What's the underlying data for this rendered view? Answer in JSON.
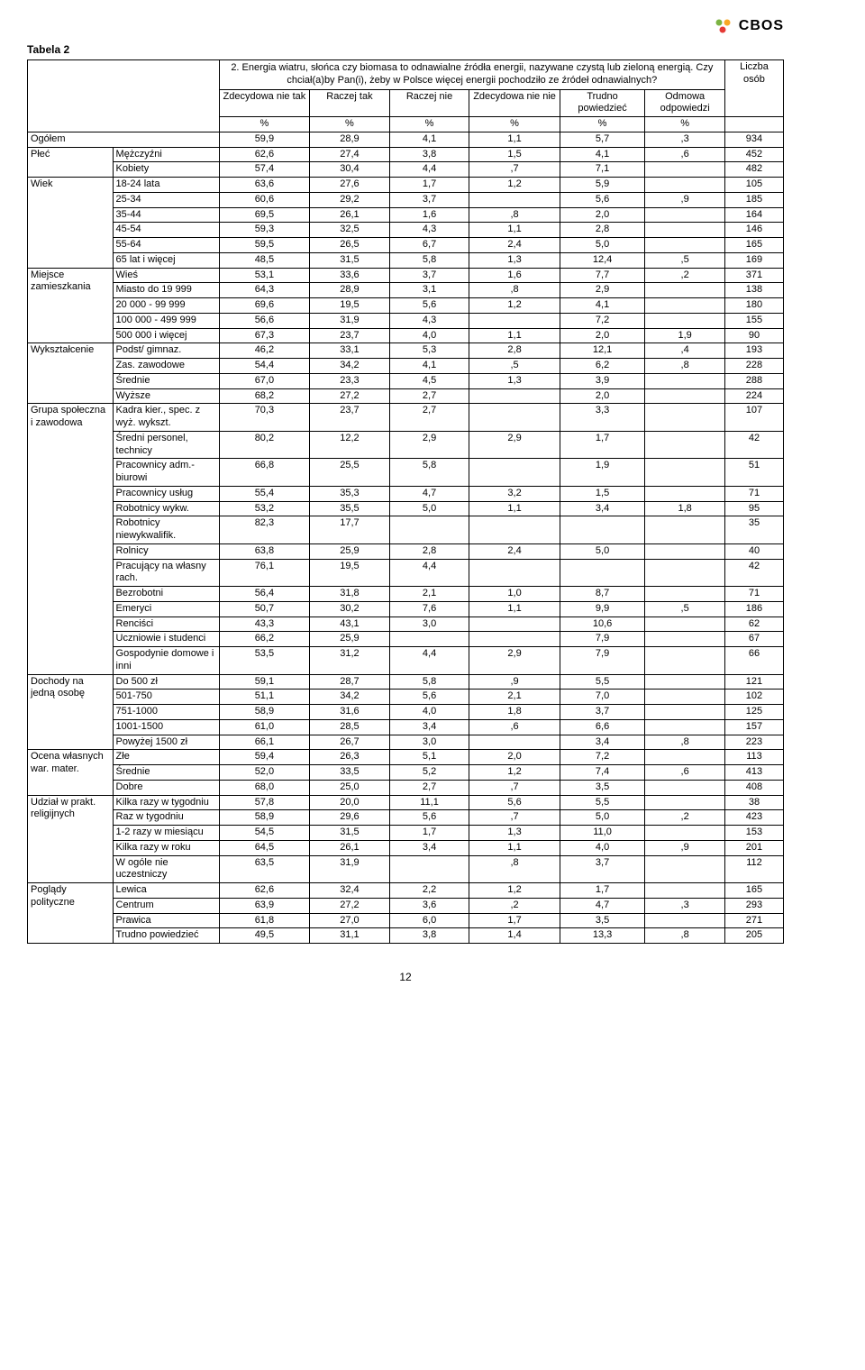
{
  "logo_text": "CBOS",
  "logo_colors": [
    "#7cb342",
    "#f9a825",
    "#e53935"
  ],
  "table_title": "Tabela 2",
  "question": "2. Energia wiatru, słońca czy biomasa to odnawialne źródła energii, nazywane czystą lub zieloną energią. Czy chciał(a)by Pan(i), żeby w Polsce więcej energii pochodziło ze źródeł odnawialnych?",
  "cols": {
    "c1": "Zdecydowa nie tak",
    "c2": "Raczej tak",
    "c3": "Raczej nie",
    "c4": "Zdecydowa nie nie",
    "c5": "Trudno powiedzieć",
    "c6": "Odmowa odpowiedzi",
    "count": "Liczba osób",
    "pct": "%"
  },
  "groups": [
    {
      "group": "Ogółem",
      "span": 2,
      "rows": [
        {
          "label": "",
          "v": [
            "59,9",
            "28,9",
            "4,1",
            "1,1",
            "5,7",
            ",3",
            "934"
          ]
        }
      ]
    },
    {
      "group": "Płeć",
      "rows": [
        {
          "label": "Mężczyźni",
          "v": [
            "62,6",
            "27,4",
            "3,8",
            "1,5",
            "4,1",
            ",6",
            "452"
          ]
        },
        {
          "label": "Kobiety",
          "v": [
            "57,4",
            "30,4",
            "4,4",
            ",7",
            "7,1",
            "",
            "482"
          ]
        }
      ]
    },
    {
      "group": "Wiek",
      "rows": [
        {
          "label": "18-24 lata",
          "v": [
            "63,6",
            "27,6",
            "1,7",
            "1,2",
            "5,9",
            "",
            "105"
          ]
        },
        {
          "label": "25-34",
          "v": [
            "60,6",
            "29,2",
            "3,7",
            "",
            "5,6",
            ",9",
            "185"
          ]
        },
        {
          "label": "35-44",
          "v": [
            "69,5",
            "26,1",
            "1,6",
            ",8",
            "2,0",
            "",
            "164"
          ]
        },
        {
          "label": "45-54",
          "v": [
            "59,3",
            "32,5",
            "4,3",
            "1,1",
            "2,8",
            "",
            "146"
          ]
        },
        {
          "label": "55-64",
          "v": [
            "59,5",
            "26,5",
            "6,7",
            "2,4",
            "5,0",
            "",
            "165"
          ]
        },
        {
          "label": "65 lat i więcej",
          "v": [
            "48,5",
            "31,5",
            "5,8",
            "1,3",
            "12,4",
            ",5",
            "169"
          ]
        }
      ]
    },
    {
      "group": "Miejsce zamieszkania",
      "rows": [
        {
          "label": "Wieś",
          "v": [
            "53,1",
            "33,6",
            "3,7",
            "1,6",
            "7,7",
            ",2",
            "371"
          ]
        },
        {
          "label": "Miasto do 19 999",
          "v": [
            "64,3",
            "28,9",
            "3,1",
            ",8",
            "2,9",
            "",
            "138"
          ]
        },
        {
          "label": "20 000 - 99 999",
          "v": [
            "69,6",
            "19,5",
            "5,6",
            "1,2",
            "4,1",
            "",
            "180"
          ]
        },
        {
          "label": "100 000 - 499 999",
          "v": [
            "56,6",
            "31,9",
            "4,3",
            "",
            "7,2",
            "",
            "155"
          ]
        },
        {
          "label": "500 000 i więcej",
          "v": [
            "67,3",
            "23,7",
            "4,0",
            "1,1",
            "2,0",
            "1,9",
            "90"
          ]
        }
      ]
    },
    {
      "group": "Wykształcenie",
      "rows": [
        {
          "label": "Podst/ gimnaz.",
          "v": [
            "46,2",
            "33,1",
            "5,3",
            "2,8",
            "12,1",
            ",4",
            "193"
          ]
        },
        {
          "label": "Zas. zawodowe",
          "v": [
            "54,4",
            "34,2",
            "4,1",
            ",5",
            "6,2",
            ",8",
            "228"
          ]
        },
        {
          "label": "Średnie",
          "v": [
            "67,0",
            "23,3",
            "4,5",
            "1,3",
            "3,9",
            "",
            "288"
          ]
        },
        {
          "label": "Wyższe",
          "v": [
            "68,2",
            "27,2",
            "2,7",
            "",
            "2,0",
            "",
            "224"
          ]
        }
      ]
    },
    {
      "group": "Grupa społeczna i zawodowa",
      "rows": [
        {
          "label": "Kadra kier., spec. z wyż. wykszt.",
          "v": [
            "70,3",
            "23,7",
            "2,7",
            "",
            "3,3",
            "",
            "107"
          ]
        },
        {
          "label": "Średni personel, technicy",
          "v": [
            "80,2",
            "12,2",
            "2,9",
            "2,9",
            "1,7",
            "",
            "42"
          ]
        },
        {
          "label": "Pracownicy adm.-biurowi",
          "v": [
            "66,8",
            "25,5",
            "5,8",
            "",
            "1,9",
            "",
            "51"
          ]
        },
        {
          "label": "Pracownicy usług",
          "v": [
            "55,4",
            "35,3",
            "4,7",
            "3,2",
            "1,5",
            "",
            "71"
          ]
        },
        {
          "label": "Robotnicy wykw.",
          "v": [
            "53,2",
            "35,5",
            "5,0",
            "1,1",
            "3,4",
            "1,8",
            "95"
          ]
        },
        {
          "label": "Robotnicy niewykwalifik.",
          "v": [
            "82,3",
            "17,7",
            "",
            "",
            "",
            "",
            "35"
          ]
        },
        {
          "label": "Rolnicy",
          "v": [
            "63,8",
            "25,9",
            "2,8",
            "2,4",
            "5,0",
            "",
            "40"
          ]
        },
        {
          "label": "Pracujący na własny rach.",
          "v": [
            "76,1",
            "19,5",
            "4,4",
            "",
            "",
            "",
            "42"
          ]
        },
        {
          "label": "Bezrobotni",
          "v": [
            "56,4",
            "31,8",
            "2,1",
            "1,0",
            "8,7",
            "",
            "71"
          ]
        },
        {
          "label": "Emeryci",
          "v": [
            "50,7",
            "30,2",
            "7,6",
            "1,1",
            "9,9",
            ",5",
            "186"
          ]
        },
        {
          "label": "Renciści",
          "v": [
            "43,3",
            "43,1",
            "3,0",
            "",
            "10,6",
            "",
            "62"
          ]
        },
        {
          "label": "Uczniowie i studenci",
          "v": [
            "66,2",
            "25,9",
            "",
            "",
            "7,9",
            "",
            "67"
          ]
        },
        {
          "label": "Gospodynie domowe i inni",
          "v": [
            "53,5",
            "31,2",
            "4,4",
            "2,9",
            "7,9",
            "",
            "66"
          ]
        }
      ]
    },
    {
      "group": "Dochody na jedną osobę",
      "rows": [
        {
          "label": "Do 500 zł",
          "v": [
            "59,1",
            "28,7",
            "5,8",
            ",9",
            "5,5",
            "",
            "121"
          ]
        },
        {
          "label": "501-750",
          "v": [
            "51,1",
            "34,2",
            "5,6",
            "2,1",
            "7,0",
            "",
            "102"
          ]
        },
        {
          "label": "751-1000",
          "v": [
            "58,9",
            "31,6",
            "4,0",
            "1,8",
            "3,7",
            "",
            "125"
          ]
        },
        {
          "label": "1001-1500",
          "v": [
            "61,0",
            "28,5",
            "3,4",
            ",6",
            "6,6",
            "",
            "157"
          ]
        },
        {
          "label": "Powyżej 1500 zł",
          "v": [
            "66,1",
            "26,7",
            "3,0",
            "",
            "3,4",
            ",8",
            "223"
          ]
        }
      ]
    },
    {
      "group": "Ocena własnych war. mater.",
      "rows": [
        {
          "label": "Złe",
          "v": [
            "59,4",
            "26,3",
            "5,1",
            "2,0",
            "7,2",
            "",
            "113"
          ]
        },
        {
          "label": "Średnie",
          "v": [
            "52,0",
            "33,5",
            "5,2",
            "1,2",
            "7,4",
            ",6",
            "413"
          ]
        },
        {
          "label": "Dobre",
          "v": [
            "68,0",
            "25,0",
            "2,7",
            ",7",
            "3,5",
            "",
            "408"
          ]
        }
      ]
    },
    {
      "group": "Udział w prakt. religijnych",
      "rows": [
        {
          "label": "Kilka razy w tygodniu",
          "v": [
            "57,8",
            "20,0",
            "11,1",
            "5,6",
            "5,5",
            "",
            "38"
          ]
        },
        {
          "label": "Raz w tygodniu",
          "v": [
            "58,9",
            "29,6",
            "5,6",
            ",7",
            "5,0",
            ",2",
            "423"
          ]
        },
        {
          "label": "1-2 razy w miesiącu",
          "v": [
            "54,5",
            "31,5",
            "1,7",
            "1,3",
            "11,0",
            "",
            "153"
          ]
        },
        {
          "label": "Kilka razy w roku",
          "v": [
            "64,5",
            "26,1",
            "3,4",
            "1,1",
            "4,0",
            ",9",
            "201"
          ]
        },
        {
          "label": "W ogóle nie uczestniczy",
          "v": [
            "63,5",
            "31,9",
            "",
            ",8",
            "3,7",
            "",
            "112"
          ]
        }
      ]
    },
    {
      "group": "Poglądy polityczne",
      "rows": [
        {
          "label": "Lewica",
          "v": [
            "62,6",
            "32,4",
            "2,2",
            "1,2",
            "1,7",
            "",
            "165"
          ]
        },
        {
          "label": "Centrum",
          "v": [
            "63,9",
            "27,2",
            "3,6",
            ",2",
            "4,7",
            ",3",
            "293"
          ]
        },
        {
          "label": "Prawica",
          "v": [
            "61,8",
            "27,0",
            "6,0",
            "1,7",
            "3,5",
            "",
            "271"
          ]
        },
        {
          "label": "Trudno powiedzieć",
          "v": [
            "49,5",
            "31,1",
            "3,8",
            "1,4",
            "13,3",
            ",8",
            "205"
          ]
        }
      ]
    }
  ],
  "page_number": "12"
}
